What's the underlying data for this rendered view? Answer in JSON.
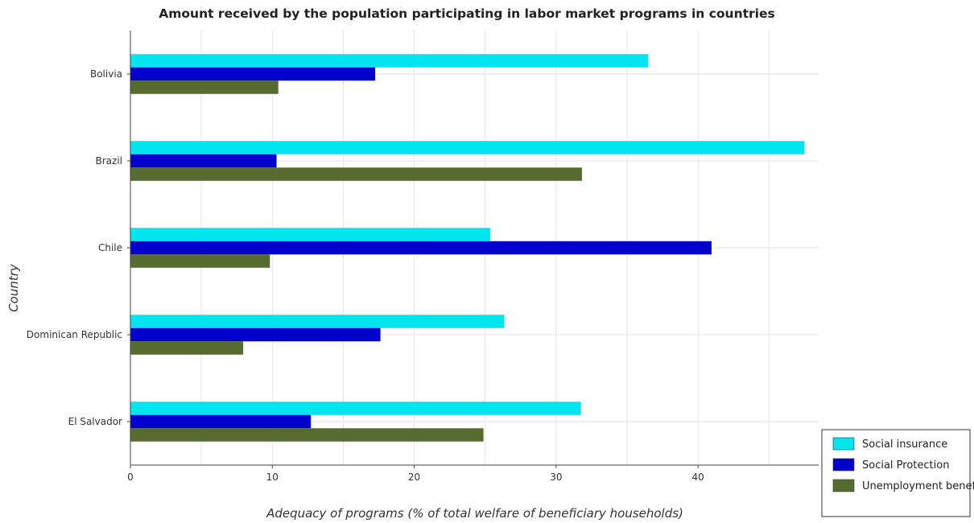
{
  "title": "Amount received by the population participating in labor market programs in countries",
  "chart_data": {
    "type": "bar",
    "orientation": "horizontal",
    "title": "Amount received by the population participating in labor market programs in countries",
    "xlabel": "Adequacy of programs (% of total welfare of beneficiary households)",
    "ylabel": "Country",
    "categories": [
      "Bolivia",
      "Brazil",
      "Chile",
      "Dominican Republic",
      "El Salvador"
    ],
    "series": [
      {
        "name": "Social insurance",
        "color": "#00e5ee",
        "values": [
          36.5,
          47.5,
          25.35,
          26.35,
          31.75
        ]
      },
      {
        "name": "Social Protection",
        "color": "#0000cd",
        "values": [
          17.25,
          10.3,
          40.95,
          17.62,
          12.72
        ]
      },
      {
        "name": "Unemployment benefits",
        "color": "#556b2f",
        "values": [
          10.42,
          31.82,
          9.83,
          7.95,
          24.88
        ]
      }
    ],
    "xlim": [
      0,
      48.5
    ],
    "xticks": [
      0,
      10,
      20,
      30,
      40
    ],
    "grid": true,
    "legend_position": "bottom-right"
  }
}
